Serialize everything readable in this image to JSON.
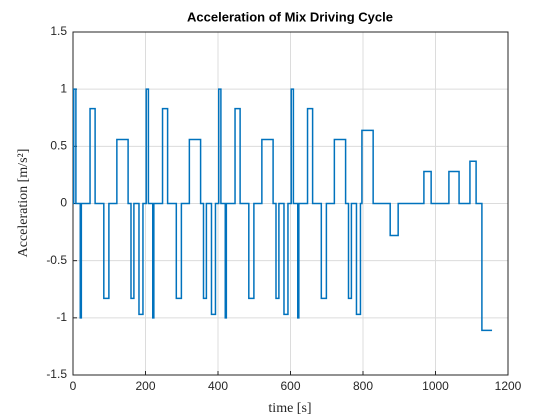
{
  "chart_data": {
    "type": "line",
    "title": "Acceleration of Mix Driving Cycle",
    "xlabel": "time [s]",
    "ylabel": "Acceleration [m/s²]",
    "x": [
      0,
      2,
      2,
      8,
      8,
      20,
      20,
      23,
      23,
      47,
      47,
      61,
      61,
      85,
      85,
      99,
      99,
      121,
      121,
      152,
      152,
      160,
      160,
      168,
      168,
      182,
      182,
      193,
      193,
      202,
      202,
      208,
      208,
      220,
      220,
      223,
      223,
      247,
      247,
      261,
      261,
      285,
      285,
      299,
      299,
      321,
      321,
      352,
      352,
      360,
      360,
      368,
      368,
      382,
      382,
      393,
      393,
      402,
      402,
      408,
      408,
      420,
      420,
      423,
      423,
      447,
      447,
      461,
      461,
      485,
      485,
      499,
      499,
      521,
      521,
      552,
      552,
      560,
      560,
      568,
      568,
      582,
      582,
      593,
      593,
      602,
      602,
      608,
      608,
      620,
      620,
      623,
      623,
      647,
      647,
      661,
      661,
      685,
      685,
      699,
      699,
      721,
      721,
      752,
      752,
      760,
      760,
      768,
      768,
      782,
      782,
      793,
      793,
      797,
      797,
      828,
      828,
      875,
      875,
      897,
      897,
      968,
      968,
      988,
      988,
      1037,
      1037,
      1065,
      1065,
      1095,
      1095,
      1112,
      1112,
      1128,
      1128,
      1156
    ],
    "series": [
      {
        "name": "acceleration",
        "color": "#0072BD",
        "values": [
          0,
          0,
          1,
          1,
          0,
          0,
          -1,
          -1,
          0,
          0,
          0.83,
          0.83,
          0,
          0,
          -0.83,
          -0.83,
          0,
          0,
          0.56,
          0.56,
          0,
          0,
          -0.83,
          -0.83,
          0,
          0,
          -0.97,
          -0.97,
          0,
          0,
          1,
          1,
          0,
          0,
          -1,
          -1,
          0,
          0,
          0.83,
          0.83,
          0,
          0,
          -0.83,
          -0.83,
          0,
          0,
          0.56,
          0.56,
          0,
          0,
          -0.83,
          -0.83,
          0,
          0,
          -0.97,
          -0.97,
          0,
          0,
          1,
          1,
          0,
          0,
          -1,
          -1,
          0,
          0,
          0.83,
          0.83,
          0,
          0,
          -0.83,
          -0.83,
          0,
          0,
          0.56,
          0.56,
          0,
          0,
          -0.83,
          -0.83,
          0,
          0,
          -0.97,
          -0.97,
          0,
          0,
          1,
          1,
          0,
          0,
          -1,
          -1,
          0,
          0,
          0.83,
          0.83,
          0,
          0,
          -0.83,
          -0.83,
          0,
          0,
          0.56,
          0.56,
          0,
          0,
          -0.83,
          -0.83,
          0,
          0,
          -0.97,
          -0.97,
          0,
          0,
          0.64,
          0.64,
          0,
          0,
          -0.28,
          -0.28,
          0,
          0,
          0.28,
          0.28,
          0,
          0,
          0.28,
          0.28,
          0,
          0,
          0.37,
          0.37,
          0,
          0,
          -1.11,
          -1.11
        ]
      }
    ],
    "xlim": [
      0,
      1200
    ],
    "xticks": [
      0,
      200,
      400,
      600,
      800,
      1000,
      1200
    ],
    "ylim": [
      -1.5,
      1.5
    ],
    "yticks": [
      -1.5,
      -1,
      -0.5,
      0,
      0.5,
      1,
      1.5
    ],
    "grid": true
  }
}
